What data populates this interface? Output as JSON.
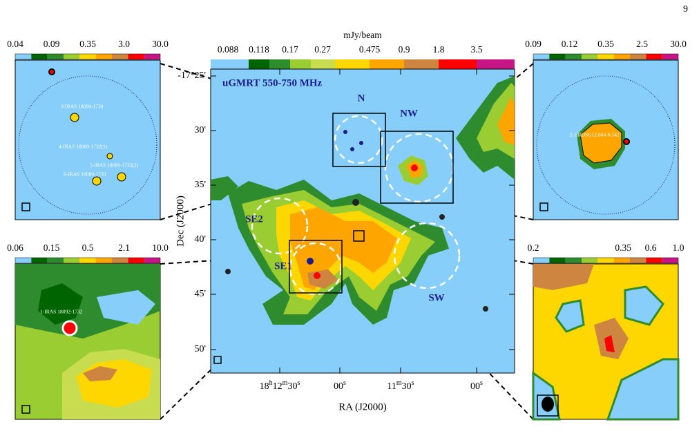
{
  "page_number": "9",
  "main": {
    "colorbar_unit": "mJy/beam",
    "colorbar_ticks": [
      "0.088",
      "0.118",
      "0.17",
      "0.27",
      "0.475",
      "0.9",
      "1.8",
      "3.5"
    ],
    "title": "uGMRT 550-750 MHz",
    "y_label": "Dec (J2000)",
    "x_label": "RA (J2000)",
    "y_ticks": [
      "-17°25'",
      "30'",
      "35'",
      "40'",
      "45'",
      "50'"
    ],
    "x_ticks": [
      [
        "18",
        "h",
        "12",
        "m",
        "30",
        "s"
      ],
      [
        "00",
        "s"
      ],
      [
        "11",
        "m",
        "30",
        "s"
      ],
      [
        "00",
        "s"
      ]
    ],
    "regions": [
      "N",
      "NW",
      "SE2",
      "SE1",
      "SW"
    ]
  },
  "insets": [
    {
      "colorbar_ticks": [
        "0.04",
        "0.09",
        "0.35",
        "3.0",
        "30.0"
      ],
      "labels": [
        "3-IRAS 18090-1730",
        "4-IRAS 18089-1732(1)",
        "5-IRAS 18089-1732(2)",
        "6-IRAS 18089-1733"
      ]
    },
    {
      "colorbar_ticks": [
        "0.09",
        "0.12",
        "0.35",
        "2.5",
        "30.0"
      ],
      "labels": [
        "2-HRDSG12.804-0.542"
      ]
    },
    {
      "colorbar_ticks": [
        "0.06",
        "0.15",
        "0.5",
        "2.1",
        "10.0"
      ],
      "labels": [
        "1-IRAS 18092-1732"
      ]
    },
    {
      "colorbar_ticks": [
        "0.2",
        "0.35",
        "0.6",
        "1.0"
      ],
      "labels": []
    }
  ]
}
